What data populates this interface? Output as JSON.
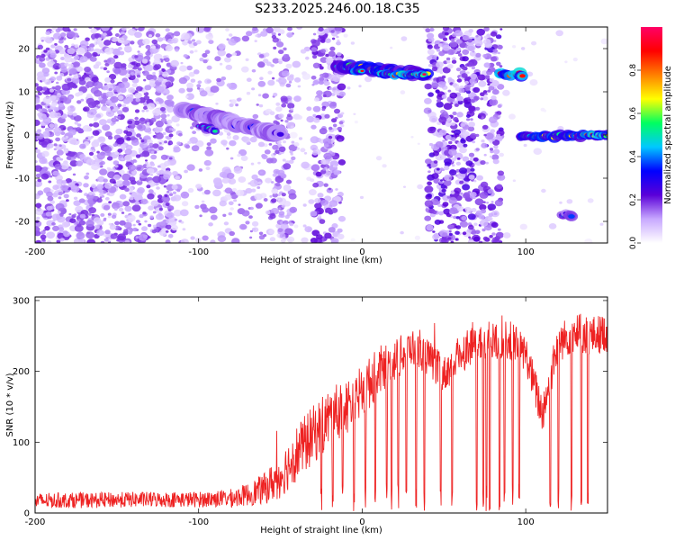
{
  "title": "S233.2025.246.00.18.C35",
  "chart_data": [
    {
      "type": "heatmap",
      "xlabel": "Height of straight line (km)",
      "ylabel": "Frequency (Hz)",
      "xlim": [
        -200,
        150
      ],
      "ylim": [
        -25,
        25
      ],
      "xticks": [
        -200,
        -100,
        0,
        100
      ],
      "yticks": [
        -20,
        -10,
        0,
        10,
        20
      ],
      "colorbar": {
        "label": "Normalized spectral amplitude",
        "range": [
          0,
          1
        ],
        "ticks": [
          "0.0",
          "0.2",
          "0.4",
          "0.6",
          "0.8"
        ],
        "tick_values": [
          0,
          0.2,
          0.4,
          0.6,
          0.8
        ],
        "stops": [
          "#ffffff",
          "#c8a8ff",
          "#5a00d8",
          "#0000ff",
          "#00c8ff",
          "#00ff60",
          "#ffff00",
          "#ff8000",
          "#ff0000",
          "#ff0066"
        ]
      },
      "regions": [
        {
          "x": [
            -200,
            -115
          ],
          "y": [
            -25,
            25
          ],
          "density": 0.34,
          "level": 0.15
        },
        {
          "x": [
            -115,
            -55
          ],
          "y": [
            -25,
            25
          ],
          "density": 0.12,
          "level": 0.12
        },
        {
          "x": [
            -55,
            -42
          ],
          "y": [
            -25,
            25
          ],
          "density": 0.28,
          "level": 0.14
        },
        {
          "x": [
            -42,
            -30
          ],
          "y": [
            -25,
            25
          ],
          "density": 0.06,
          "level": 0.08
        },
        {
          "x": [
            -30,
            -12
          ],
          "y": [
            -25,
            25
          ],
          "density": 0.3,
          "level": 0.16
        },
        {
          "x": [
            -12,
            40
          ],
          "y": [
            -25,
            25
          ],
          "density": 0.01,
          "level": 0.05
        },
        {
          "x": [
            40,
            85
          ],
          "y": [
            -25,
            25
          ],
          "density": 0.32,
          "level": 0.18
        },
        {
          "x": [
            85,
            150
          ],
          "y": [
            -25,
            25
          ],
          "density": 0.01,
          "level": 0.05
        }
      ],
      "bands": [
        {
          "x": [
            -110,
            -50
          ],
          "y": [
            6,
            0
          ],
          "width": 1.6,
          "level": 0.35
        },
        {
          "x": [
            -100,
            -90
          ],
          "y": [
            2,
            1
          ],
          "width": 0.9,
          "level": 0.5
        },
        {
          "x": [
            -15,
            40
          ],
          "y": [
            16,
            14
          ],
          "width": 1.3,
          "level": 0.65
        },
        {
          "x": [
            -6,
            0
          ],
          "y": [
            15,
            15
          ],
          "width": 0.9,
          "level": 0.92
        },
        {
          "x": [
            10,
            38
          ],
          "y": [
            14,
            14
          ],
          "width": 0.8,
          "level": 0.88
        },
        {
          "x": [
            84,
            98
          ],
          "y": [
            14,
            14
          ],
          "width": 1.1,
          "level": 0.9
        },
        {
          "x": [
            96,
            150
          ],
          "y": [
            -0.5,
            0
          ],
          "width": 1.0,
          "level": 0.7
        },
        {
          "x": [
            135,
            150
          ],
          "y": [
            0,
            0
          ],
          "width": 0.8,
          "level": 0.95
        },
        {
          "x": [
            122,
            128
          ],
          "y": [
            -18.5,
            -18.5
          ],
          "width": 1.0,
          "level": 0.4
        }
      ]
    },
    {
      "type": "line",
      "xlabel": "Height of straight line (km)",
      "ylabel": "SNR (10 * v/v)",
      "xlim": [
        -200,
        150
      ],
      "ylim": [
        0,
        305
      ],
      "xticks": [
        -200,
        -100,
        0,
        100
      ],
      "yticks": [
        0,
        100,
        200,
        300
      ],
      "color": "#ee2222",
      "series": [
        {
          "name": "SNR",
          "x": [
            -200,
            -180,
            -160,
            -140,
            -120,
            -100,
            -90,
            -80,
            -70,
            -60,
            -50,
            -40,
            -30,
            -20,
            -10,
            0,
            10,
            20,
            30,
            40,
            50,
            60,
            70,
            80,
            90,
            100,
            110,
            120,
            130,
            140,
            150
          ],
          "values": [
            17,
            18,
            18,
            19,
            19,
            19,
            20,
            21,
            26,
            34,
            52,
            85,
            110,
            135,
            150,
            170,
            200,
            215,
            235,
            220,
            195,
            225,
            245,
            240,
            245,
            225,
            140,
            240,
            255,
            250,
            255
          ],
          "noise_amplitude": [
            11,
            11,
            11,
            11,
            11,
            11,
            12,
            13,
            16,
            22,
            32,
            40,
            42,
            42,
            40,
            38,
            36,
            30,
            26,
            26,
            26,
            28,
            30,
            30,
            28,
            26,
            30,
            28,
            28,
            28,
            28
          ],
          "dropouts": [
            -25,
            -18,
            -12,
            -5,
            2,
            8,
            15,
            18,
            22,
            27,
            33,
            38,
            48,
            55,
            70,
            74,
            76,
            78,
            84,
            87,
            92,
            96,
            115,
            120,
            128,
            134,
            138
          ]
        }
      ]
    }
  ]
}
